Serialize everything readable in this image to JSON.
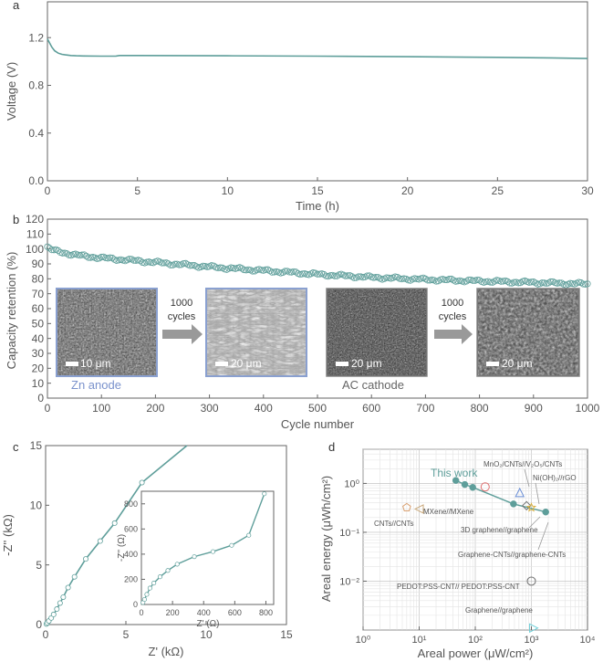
{
  "chart_data": [
    {
      "panel": "a",
      "type": "line",
      "xlabel": "Time (h)",
      "ylabel": "Voltage (V)",
      "xlim": [
        0,
        30
      ],
      "ylim": [
        0,
        1.5
      ],
      "xticks": [
        0,
        5,
        10,
        15,
        20,
        25,
        30
      ],
      "yticks": [
        0.0,
        0.4,
        0.8,
        1.2
      ],
      "ytick_labels": [
        "0.0",
        "0.4",
        "0.8",
        "1.2"
      ],
      "series": [
        {
          "name": "voltage",
          "color": "#5e9e9a",
          "x": [
            0,
            0.1,
            0.25,
            0.4,
            0.6,
            0.8,
            1.0,
            1.3,
            1.6,
            2.0,
            3.0,
            3.8,
            4.0,
            5,
            10,
            15,
            20,
            25,
            28,
            30
          ],
          "y": [
            1.19,
            1.16,
            1.12,
            1.09,
            1.07,
            1.06,
            1.055,
            1.05,
            1.048,
            1.046,
            1.045,
            1.045,
            1.05,
            1.05,
            1.048,
            1.045,
            1.04,
            1.035,
            1.03,
            1.025
          ]
        }
      ]
    },
    {
      "panel": "b",
      "type": "scatter",
      "xlabel": "Cycle number",
      "ylabel": "Capacity retention (%)",
      "xlim": [
        0,
        1000
      ],
      "ylim": [
        0,
        120
      ],
      "xticks": [
        0,
        100,
        200,
        300,
        400,
        500,
        600,
        700,
        800,
        900,
        1000
      ],
      "yticks": [
        0,
        10,
        20,
        30,
        40,
        50,
        60,
        70,
        80,
        90,
        100,
        110,
        120
      ],
      "series": [
        {
          "name": "retention",
          "color": "#5e9e9a",
          "x": [
            0,
            10,
            25,
            50,
            100,
            150,
            200,
            250,
            300,
            400,
            500,
            600,
            700,
            800,
            900,
            950,
            1000
          ],
          "y": [
            101,
            99,
            98,
            96,
            94,
            92.5,
            91,
            89.5,
            88,
            85.5,
            83,
            81,
            79.5,
            78.5,
            77.5,
            77,
            76.5
          ]
        }
      ],
      "insets": {
        "anode_label": "Zn anode",
        "cathode_label": "AC cathode",
        "arrow_label": [
          "1000",
          "cycles"
        ],
        "scale_label": "10 μm",
        "scale_label_2": "20 μm"
      }
    },
    {
      "panel": "c",
      "type": "line",
      "xlabel": "Z' (kΩ)",
      "ylabel": "-Z'' (kΩ)",
      "xlim": [
        0,
        15
      ],
      "ylim": [
        0,
        15
      ],
      "xticks": [
        0,
        5,
        10,
        15
      ],
      "yticks": [
        0,
        5,
        10,
        15
      ],
      "series": [
        {
          "name": "nyquist",
          "color": "#5e9e9a",
          "x": [
            0.05,
            0.1,
            0.2,
            0.35,
            0.5,
            0.7,
            0.9,
            1.1,
            1.4,
            1.8,
            2.5,
            3.4,
            4.3,
            6.0,
            8.8
          ],
          "y": [
            0.05,
            0.15,
            0.3,
            0.55,
            0.85,
            1.3,
            1.8,
            2.3,
            3.1,
            4.0,
            5.5,
            7.0,
            8.5,
            11.9,
            15
          ]
        }
      ],
      "inset": {
        "xlabel": "Z' (Ω)",
        "ylabel": "-Z'' (Ω)",
        "xlim": [
          0,
          850
        ],
        "ylim": [
          0,
          900
        ],
        "xticks": [
          0,
          200,
          400,
          600,
          800
        ],
        "yticks": [
          0,
          200,
          400,
          600,
          800
        ],
        "x": [
          10,
          20,
          35,
          55,
          80,
          120,
          170,
          230,
          340,
          460,
          580,
          690,
          790
        ],
        "y": [
          15,
          40,
          80,
          130,
          170,
          220,
          270,
          320,
          380,
          420,
          470,
          550,
          880
        ]
      }
    },
    {
      "panel": "d",
      "type": "scatter",
      "xlabel": "Areal power (μW/cm²)",
      "ylabel": "Areal energy (μWh/cm²)",
      "xscale": "log",
      "yscale": "log",
      "xlim": [
        1,
        10000
      ],
      "ylim": [
        0.001,
        5
      ],
      "xticks": [
        1,
        10,
        100,
        1000,
        10000
      ],
      "xtick_labels": [
        "10⁰",
        "10¹",
        "10²",
        "10³",
        "10⁴"
      ],
      "yticks": [
        0.01,
        0.1,
        1
      ],
      "ytick_labels": [
        "10⁻²",
        "10⁻¹",
        "10⁰"
      ],
      "this_work": {
        "label": "This work",
        "x": [
          45,
          65,
          90,
          480,
          1800
        ],
        "y": [
          1.15,
          0.95,
          0.83,
          0.38,
          0.26
        ]
      },
      "references": [
        {
          "label": "MnO₂/CNTs//V₂O₅/CNTs",
          "x": 150,
          "y": 0.85,
          "marker": "circle",
          "color": "#e07070"
        },
        {
          "label": "Ni(OH)₂//rGO",
          "x": 620,
          "y": 0.65,
          "marker": "triangle-up",
          "color": "#6a8ed6"
        },
        {
          "label": "MXene//MXene",
          "x": 10,
          "y": 0.3,
          "marker": "triangle-left",
          "color": "#c9a87a"
        },
        {
          "label": "CNTs//CNTs",
          "x": 6,
          "y": 0.32,
          "marker": "pentagon",
          "color": "#d9a070"
        },
        {
          "label": "3D graphene//graphene",
          "x": 820,
          "y": 0.35,
          "marker": "diamond",
          "color": "#707070"
        },
        {
          "label": "Graphene-CNTs//graphene-CNTs",
          "x": 1000,
          "y": 0.32,
          "marker": "star",
          "color": "#d8b040"
        },
        {
          "label": "PEDOT:PSS-CNT// PEDOT:PSS-CNT",
          "x": 1000,
          "y": 0.01,
          "marker": "circle",
          "color": "#707070"
        },
        {
          "label": "Graphene//graphene",
          "x": 1100,
          "y": 0.0011,
          "marker": "triangle-right",
          "color": "#6fcfd8"
        }
      ]
    }
  ],
  "panel_labels": [
    "a",
    "b",
    "c",
    "d"
  ],
  "colors": {
    "accent": "#5e9e9a",
    "axis": "#555555",
    "text": "#555555"
  }
}
